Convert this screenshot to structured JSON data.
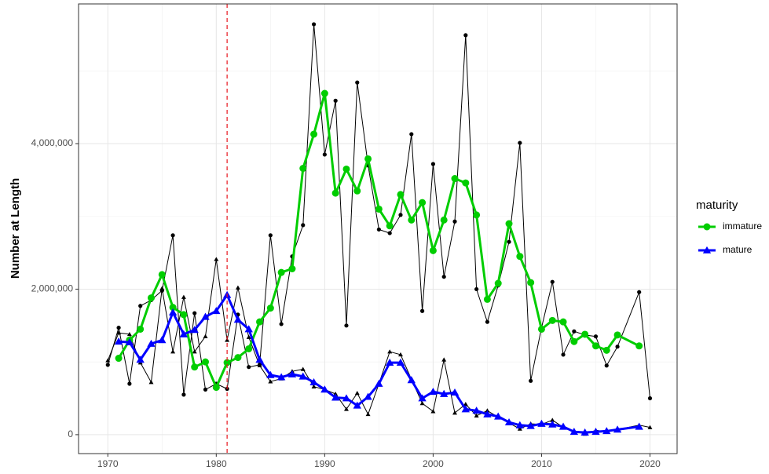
{
  "chart_data": {
    "type": "line",
    "y_label": "Number at Length",
    "legend_title": "maturity",
    "legend": "right",
    "grid": true,
    "xlim": [
      1967.3,
      2022.5
    ],
    "ylim": [
      -260000,
      5920000
    ],
    "xticks": [
      1970,
      1980,
      1990,
      2000,
      2010,
      2020
    ],
    "x_minor_grid": [
      1975,
      1985,
      1995,
      2005,
      2015
    ],
    "yticks": [
      0,
      {
        "value": 2000000,
        "label": "2,000,000"
      },
      {
        "value": 4000000,
        "label": "4,000,000"
      }
    ],
    "y_minor_grid": [
      1000000,
      3000000,
      5000000
    ],
    "vline": {
      "x": 1981,
      "color": "#e8141c"
    },
    "series": [
      {
        "color": "#000000",
        "marker": "circle",
        "linewidth": 1,
        "x": [
          1970,
          1971,
          1972,
          1973,
          1974,
          1975,
          1976,
          1977,
          1978,
          1979,
          1980,
          1981,
          1982,
          1983,
          1984,
          1985,
          1986,
          1987,
          1988,
          1989,
          1990,
          1991,
          1992,
          1993,
          1994,
          1995,
          1996,
          1997,
          1998,
          1999,
          2000,
          2001,
          2002,
          2003,
          2004,
          2005,
          2006,
          2007,
          2008,
          2009,
          2010,
          2011,
          2012,
          2013,
          2014,
          2015,
          2016,
          2017,
          2019,
          2020
        ],
        "values": [
          960000,
          1470000,
          700000,
          1770000,
          1850000,
          1980000,
          2740000,
          550000,
          1670000,
          620000,
          700000,
          630000,
          1650000,
          930000,
          960000,
          2740000,
          1520000,
          2450000,
          2880000,
          5640000,
          3850000,
          4590000,
          1500000,
          4840000,
          3700000,
          2820000,
          2770000,
          3020000,
          4130000,
          1700000,
          3720000,
          2170000,
          2930000,
          5490000,
          2000000,
          1550000,
          2050000,
          2650000,
          4010000,
          740000,
          1470000,
          2100000,
          1100000,
          1420000,
          1370000,
          1350000,
          950000,
          1210000,
          1960000,
          500000
        ]
      },
      {
        "color": "#000000",
        "marker": "triangle",
        "linewidth": 1,
        "x": [
          1970,
          1971,
          1972,
          1973,
          1974,
          1975,
          1976,
          1977,
          1978,
          1979,
          1980,
          1981,
          1982,
          1983,
          1984,
          1985,
          1986,
          1987,
          1988,
          1989,
          1990,
          1991,
          1992,
          1993,
          1994,
          1995,
          1996,
          1997,
          1998,
          1999,
          2000,
          2001,
          2002,
          2003,
          2004,
          2005,
          2006,
          2007,
          2008,
          2009,
          2010,
          2011,
          2012,
          2013,
          2014,
          2015,
          2016,
          2017,
          2019,
          2020
        ],
        "values": [
          1020000,
          1400000,
          1380000,
          990000,
          720000,
          2010000,
          1140000,
          1890000,
          1140000,
          1350000,
          2410000,
          1300000,
          2020000,
          1340000,
          950000,
          730000,
          770000,
          870000,
          900000,
          660000,
          620000,
          560000,
          350000,
          570000,
          280000,
          700000,
          1140000,
          1100000,
          760000,
          430000,
          320000,
          1030000,
          300000,
          420000,
          260000,
          330000,
          240000,
          160000,
          80000,
          150000,
          140000,
          200000,
          100000,
          50000,
          10000,
          60000,
          40000,
          70000,
          130000,
          100000
        ]
      },
      {
        "name": "immature",
        "color": "#00cd00",
        "marker": "circle",
        "linewidth": 3,
        "x": [
          1971,
          1972,
          1973,
          1974,
          1975,
          1976,
          1977,
          1978,
          1979,
          1980,
          1981,
          1982,
          1983,
          1984,
          1985,
          1986,
          1987,
          1988,
          1989,
          1990,
          1991,
          1992,
          1993,
          1994,
          1995,
          1996,
          1997,
          1998,
          1999,
          2000,
          2001,
          2002,
          2003,
          2004,
          2005,
          2006,
          2007,
          2008,
          2009,
          2010,
          2011,
          2012,
          2013,
          2014,
          2015,
          2016,
          2017,
          2019
        ],
        "values": [
          1050000,
          1300000,
          1450000,
          1880000,
          2200000,
          1750000,
          1650000,
          930000,
          1000000,
          650000,
          990000,
          1060000,
          1180000,
          1550000,
          1740000,
          2230000,
          2280000,
          3660000,
          4130000,
          4690000,
          3320000,
          3650000,
          3350000,
          3790000,
          3100000,
          2870000,
          3300000,
          2950000,
          3190000,
          2530000,
          2950000,
          3520000,
          3460000,
          3020000,
          1860000,
          2080000,
          2900000,
          2450000,
          2090000,
          1450000,
          1570000,
          1550000,
          1280000,
          1380000,
          1220000,
          1160000,
          1370000,
          1220000
        ]
      },
      {
        "name": "mature",
        "color": "#0000ff",
        "marker": "triangle",
        "linewidth": 3,
        "x": [
          1971,
          1972,
          1973,
          1974,
          1975,
          1976,
          1977,
          1978,
          1979,
          1980,
          1981,
          1982,
          1983,
          1984,
          1985,
          1986,
          1987,
          1988,
          1989,
          1990,
          1991,
          1992,
          1993,
          1994,
          1995,
          1996,
          1997,
          1998,
          1999,
          2000,
          2001,
          2002,
          2003,
          2004,
          2005,
          2006,
          2007,
          2008,
          2009,
          2010,
          2011,
          2012,
          2013,
          2014,
          2015,
          2016,
          2017,
          2019
        ],
        "values": [
          1280000,
          1270000,
          1030000,
          1250000,
          1300000,
          1680000,
          1380000,
          1440000,
          1620000,
          1700000,
          1920000,
          1580000,
          1450000,
          1030000,
          820000,
          790000,
          830000,
          800000,
          720000,
          620000,
          510000,
          500000,
          400000,
          520000,
          700000,
          990000,
          990000,
          750000,
          500000,
          590000,
          560000,
          580000,
          350000,
          330000,
          280000,
          250000,
          170000,
          130000,
          120000,
          150000,
          140000,
          110000,
          40000,
          30000,
          40000,
          50000,
          70000,
          110000
        ]
      }
    ]
  }
}
